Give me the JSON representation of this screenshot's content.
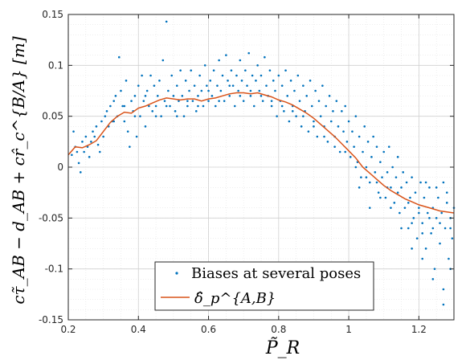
{
  "chart_data": {
    "type": "scatter",
    "xlabel": "P̃_R",
    "ylabel": "cτ̃_AB − d_AB + cr̂_c^{B/A} [m]",
    "xlim": [
      0.2,
      1.3
    ],
    "ylim": [
      -0.15,
      0.15
    ],
    "x_ticks": [
      "0.2",
      "0.4",
      "0.6",
      "0.8",
      "1",
      "1.2"
    ],
    "y_ticks": [
      "-0.15",
      "-0.1",
      "-0.05",
      "0",
      "0.05",
      "0.1",
      "0.15"
    ],
    "grid": "major and minor",
    "legend_position": "bottom-center",
    "series": [
      {
        "name": "Biases at several poses",
        "kind": "scatter",
        "color": "#0072BD",
        "points": [
          [
            0.21,
            0.012
          ],
          [
            0.215,
            0.035
          ],
          [
            0.22,
            0.02
          ],
          [
            0.225,
            0.015
          ],
          [
            0.23,
            0.004
          ],
          [
            0.235,
            -0.005
          ],
          [
            0.24,
            0.025
          ],
          [
            0.245,
            0.015
          ],
          [
            0.25,
            0.03
          ],
          [
            0.255,
            0.02
          ],
          [
            0.26,
            0.01
          ],
          [
            0.265,
            0.025
          ],
          [
            0.27,
            0.035
          ],
          [
            0.275,
            0.03
          ],
          [
            0.28,
            0.04
          ],
          [
            0.285,
            0.022
          ],
          [
            0.29,
            0.015
          ],
          [
            0.295,
            0.045
          ],
          [
            0.3,
            0.03
          ],
          [
            0.305,
            0.05
          ],
          [
            0.31,
            0.055
          ],
          [
            0.315,
            0.04
          ],
          [
            0.32,
            0.06
          ],
          [
            0.325,
            0.045
          ],
          [
            0.33,
            0.065
          ],
          [
            0.335,
            0.07
          ],
          [
            0.34,
            0.05
          ],
          [
            0.345,
            0.108
          ],
          [
            0.35,
            0.075
          ],
          [
            0.355,
            0.06
          ],
          [
            0.36,
            0.045
          ],
          [
            0.365,
            0.085
          ],
          [
            0.37,
            0.035
          ],
          [
            0.375,
            0.02
          ],
          [
            0.38,
            0.065
          ],
          [
            0.385,
            0.055
          ],
          [
            0.39,
            0.07
          ],
          [
            0.395,
            0.03
          ],
          [
            0.4,
            0.08
          ],
          [
            0.405,
            0.05
          ],
          [
            0.41,
            0.09
          ],
          [
            0.415,
            0.065
          ],
          [
            0.42,
            0.04
          ],
          [
            0.425,
            0.075
          ],
          [
            0.43,
            0.06
          ],
          [
            0.435,
            0.09
          ],
          [
            0.44,
            0.055
          ],
          [
            0.445,
            0.08
          ],
          [
            0.45,
            0.06
          ],
          [
            0.455,
            0.07
          ],
          [
            0.46,
            0.085
          ],
          [
            0.465,
            0.05
          ],
          [
            0.47,
            0.105
          ],
          [
            0.475,
            0.065
          ],
          [
            0.48,
            0.143
          ],
          [
            0.485,
            0.075
          ],
          [
            0.49,
            0.06
          ],
          [
            0.495,
            0.09
          ],
          [
            0.5,
            0.07
          ],
          [
            0.505,
            0.055
          ],
          [
            0.51,
            0.08
          ],
          [
            0.515,
            0.065
          ],
          [
            0.52,
            0.095
          ],
          [
            0.525,
            0.07
          ],
          [
            0.53,
            0.05
          ],
          [
            0.535,
            0.085
          ],
          [
            0.54,
            0.06
          ],
          [
            0.545,
            0.075
          ],
          [
            0.55,
            0.095
          ],
          [
            0.555,
            0.065
          ],
          [
            0.56,
            0.08
          ],
          [
            0.565,
            0.055
          ],
          [
            0.57,
            0.07
          ],
          [
            0.575,
            0.09
          ],
          [
            0.58,
            0.075
          ],
          [
            0.585,
            0.06
          ],
          [
            0.59,
            0.1
          ],
          [
            0.595,
            0.08
          ],
          [
            0.6,
            0.065
          ],
          [
            0.605,
            0.085
          ],
          [
            0.61,
            0.07
          ],
          [
            0.615,
            0.095
          ],
          [
            0.62,
            0.06
          ],
          [
            0.625,
            0.08
          ],
          [
            0.63,
            0.105
          ],
          [
            0.635,
            0.075
          ],
          [
            0.64,
            0.09
          ],
          [
            0.645,
            0.065
          ],
          [
            0.65,
            0.11
          ],
          [
            0.655,
            0.085
          ],
          [
            0.66,
            0.07
          ],
          [
            0.665,
            0.095
          ],
          [
            0.67,
            0.08
          ],
          [
            0.675,
            0.06
          ],
          [
            0.68,
            0.09
          ],
          [
            0.685,
            0.075
          ],
          [
            0.69,
            0.105
          ],
          [
            0.695,
            0.085
          ],
          [
            0.7,
            0.065
          ],
          [
            0.705,
            0.095
          ],
          [
            0.71,
            0.08
          ],
          [
            0.715,
            0.112
          ],
          [
            0.72,
            0.07
          ],
          [
            0.725,
            0.09
          ],
          [
            0.73,
            0.06
          ],
          [
            0.735,
            0.085
          ],
          [
            0.74,
            0.1
          ],
          [
            0.745,
            0.075
          ],
          [
            0.75,
            0.09
          ],
          [
            0.755,
            0.065
          ],
          [
            0.76,
            0.108
          ],
          [
            0.765,
            0.08
          ],
          [
            0.77,
            0.07
          ],
          [
            0.775,
            0.095
          ],
          [
            0.78,
            0.06
          ],
          [
            0.785,
            0.085
          ],
          [
            0.79,
            0.075
          ],
          [
            0.795,
            0.05
          ],
          [
            0.8,
            0.09
          ],
          [
            0.805,
            0.065
          ],
          [
            0.81,
            0.08
          ],
          [
            0.815,
            0.055
          ],
          [
            0.82,
            0.095
          ],
          [
            0.825,
            0.07
          ],
          [
            0.83,
            0.045
          ],
          [
            0.835,
            0.085
          ],
          [
            0.84,
            0.06
          ],
          [
            0.845,
            0.075
          ],
          [
            0.85,
            0.05
          ],
          [
            0.855,
            0.09
          ],
          [
            0.86,
            0.065
          ],
          [
            0.865,
            0.04
          ],
          [
            0.87,
            0.08
          ],
          [
            0.875,
            0.055
          ],
          [
            0.88,
            0.07
          ],
          [
            0.885,
            0.035
          ],
          [
            0.89,
            0.085
          ],
          [
            0.895,
            0.06
          ],
          [
            0.9,
            0.045
          ],
          [
            0.905,
            0.075
          ],
          [
            0.91,
            0.03
          ],
          [
            0.915,
            0.065
          ],
          [
            0.92,
            0.05
          ],
          [
            0.925,
            0.08
          ],
          [
            0.93,
            0.04
          ],
          [
            0.935,
            0.06
          ],
          [
            0.94,
            0.025
          ],
          [
            0.945,
            0.07
          ],
          [
            0.95,
            0.045
          ],
          [
            0.955,
            0.055
          ],
          [
            0.96,
            0.03
          ],
          [
            0.965,
            0.065
          ],
          [
            0.97,
            0.04
          ],
          [
            0.975,
            0.015
          ],
          [
            0.98,
            0.055
          ],
          [
            0.985,
            0.035
          ],
          [
            0.99,
            0.06
          ],
          [
            0.995,
            0.025
          ],
          [
            1.0,
            0.045
          ],
          [
            1.005,
            0.01
          ],
          [
            1.01,
            0.035
          ],
          [
            1.015,
            0.02
          ],
          [
            1.02,
            0.05
          ],
          [
            1.025,
            0.005
          ],
          [
            1.03,
            0.03
          ],
          [
            1.035,
            -0.01
          ],
          [
            1.04,
            0.015
          ],
          [
            1.045,
            0.04
          ],
          [
            1.05,
            0.0
          ],
          [
            1.055,
            0.025
          ],
          [
            1.06,
            -0.015
          ],
          [
            1.065,
            0.01
          ],
          [
            1.07,
            0.03
          ],
          [
            1.075,
            -0.005
          ],
          [
            1.08,
            0.02
          ],
          [
            1.085,
            -0.025
          ],
          [
            1.09,
            0.005
          ],
          [
            1.095,
            -0.01
          ],
          [
            1.1,
            0.015
          ],
          [
            1.105,
            -0.03
          ],
          [
            1.11,
            -0.005
          ],
          [
            1.115,
            0.02
          ],
          [
            1.12,
            -0.02
          ],
          [
            1.125,
            0.0
          ],
          [
            1.13,
            -0.035
          ],
          [
            1.135,
            -0.01
          ],
          [
            1.14,
            0.01
          ],
          [
            1.145,
            -0.045
          ],
          [
            1.15,
            -0.02
          ],
          [
            1.155,
            -0.005
          ],
          [
            1.16,
            -0.04
          ],
          [
            1.165,
            -0.015
          ],
          [
            1.17,
            -0.06
          ],
          [
            1.175,
            -0.03
          ],
          [
            1.18,
            -0.01
          ],
          [
            1.185,
            -0.05
          ],
          [
            1.19,
            -0.025
          ],
          [
            1.195,
            -0.07
          ],
          [
            1.2,
            -0.04
          ],
          [
            1.205,
            -0.015
          ],
          [
            1.21,
            -0.055
          ],
          [
            1.215,
            -0.03
          ],
          [
            1.22,
            -0.08
          ],
          [
            1.225,
            -0.045
          ],
          [
            1.23,
            -0.02
          ],
          [
            1.235,
            -0.065
          ],
          [
            1.24,
            -0.04
          ],
          [
            1.245,
            -0.1
          ],
          [
            1.25,
            -0.05
          ],
          [
            1.255,
            -0.03
          ],
          [
            1.26,
            -0.075
          ],
          [
            1.265,
            -0.045
          ],
          [
            1.27,
            -0.135
          ],
          [
            1.275,
            -0.06
          ],
          [
            1.28,
            -0.035
          ],
          [
            1.285,
            -0.09
          ],
          [
            1.29,
            -0.05
          ],
          [
            1.295,
            -0.07
          ],
          [
            1.3,
            -0.04
          ],
          [
            0.33,
            0.045
          ],
          [
            0.36,
            0.06
          ],
          [
            0.39,
            0.05
          ],
          [
            0.42,
            0.07
          ],
          [
            0.45,
            0.05
          ],
          [
            0.48,
            0.06
          ],
          [
            0.51,
            0.05
          ],
          [
            0.54,
            0.065
          ],
          [
            0.57,
            0.06
          ],
          [
            0.6,
            0.075
          ],
          [
            0.63,
            0.065
          ],
          [
            0.66,
            0.08
          ],
          [
            0.69,
            0.07
          ],
          [
            0.72,
            0.075
          ],
          [
            0.75,
            0.07
          ],
          [
            0.78,
            0.065
          ],
          [
            0.81,
            0.06
          ],
          [
            0.84,
            0.055
          ],
          [
            0.87,
            0.05
          ],
          [
            0.9,
            0.04
          ],
          [
            0.93,
            0.03
          ],
          [
            0.96,
            0.02
          ],
          [
            0.99,
            0.015
          ],
          [
            1.02,
            0.0
          ],
          [
            1.05,
            -0.01
          ],
          [
            1.08,
            -0.015
          ],
          [
            1.11,
            -0.02
          ],
          [
            1.14,
            -0.025
          ],
          [
            1.17,
            -0.035
          ],
          [
            1.2,
            -0.045
          ],
          [
            1.23,
            -0.05
          ],
          [
            1.26,
            -0.055
          ],
          [
            1.29,
            -0.06
          ],
          [
            1.22,
            -0.015
          ],
          [
            1.25,
            -0.02
          ],
          [
            1.28,
            -0.025
          ],
          [
            1.18,
            -0.08
          ],
          [
            1.21,
            -0.09
          ],
          [
            1.24,
            -0.11
          ],
          [
            1.27,
            -0.12
          ],
          [
            1.15,
            -0.06
          ],
          [
            1.12,
            -0.04
          ],
          [
            1.09,
            -0.03
          ],
          [
            1.06,
            -0.04
          ],
          [
            1.03,
            -0.02
          ],
          [
            1.27,
            -0.015
          ],
          [
            1.24,
            -0.06
          ],
          [
            1.21,
            -0.065
          ],
          [
            1.18,
            -0.055
          ],
          [
            1.29,
            -0.1
          ]
        ]
      },
      {
        "name": "δ̂_p^{A,B}",
        "kind": "line",
        "color": "#D95319",
        "x": [
          0.2,
          0.22,
          0.24,
          0.26,
          0.28,
          0.3,
          0.32,
          0.34,
          0.36,
          0.38,
          0.4,
          0.42,
          0.44,
          0.46,
          0.48,
          0.5,
          0.52,
          0.54,
          0.56,
          0.58,
          0.6,
          0.62,
          0.64,
          0.66,
          0.68,
          0.7,
          0.72,
          0.74,
          0.76,
          0.78,
          0.8,
          0.82,
          0.84,
          0.86,
          0.88,
          0.9,
          0.92,
          0.94,
          0.96,
          0.98,
          1.0,
          1.02,
          1.04,
          1.06,
          1.08,
          1.1,
          1.12,
          1.14,
          1.16,
          1.18,
          1.2,
          1.22,
          1.24,
          1.26,
          1.28,
          1.3
        ],
        "y": [
          0.012,
          0.02,
          0.019,
          0.022,
          0.026,
          0.035,
          0.044,
          0.05,
          0.054,
          0.053,
          0.058,
          0.06,
          0.063,
          0.066,
          0.068,
          0.067,
          0.066,
          0.067,
          0.067,
          0.065,
          0.067,
          0.068,
          0.07,
          0.072,
          0.073,
          0.073,
          0.072,
          0.073,
          0.071,
          0.069,
          0.066,
          0.064,
          0.061,
          0.057,
          0.053,
          0.048,
          0.042,
          0.036,
          0.03,
          0.023,
          0.016,
          0.009,
          0.0,
          -0.006,
          -0.012,
          -0.018,
          -0.023,
          -0.027,
          -0.031,
          -0.034,
          -0.037,
          -0.039,
          -0.041,
          -0.043,
          -0.044,
          -0.045
        ]
      }
    ]
  }
}
